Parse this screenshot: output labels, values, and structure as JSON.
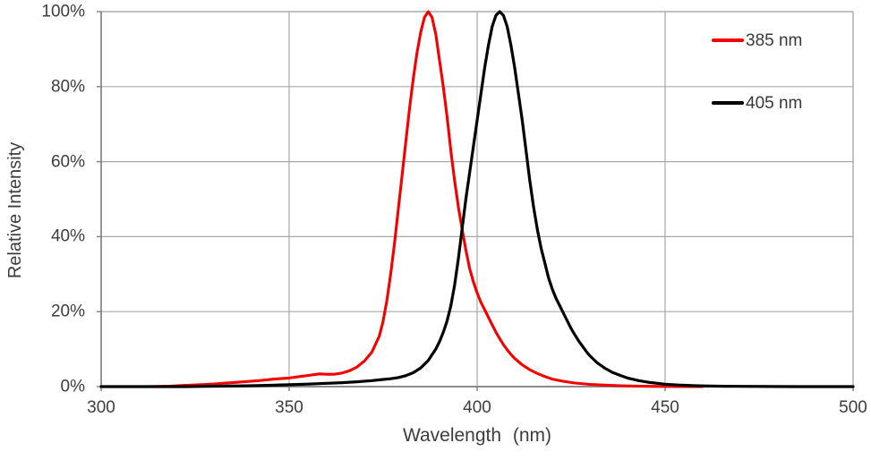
{
  "figure": {
    "y_axis": {
      "title": "Relative Intensity",
      "ticks": [
        "100%",
        "80%",
        "60%",
        "40%",
        "20%",
        "0%"
      ]
    },
    "x_axis": {
      "title": "Wavelength (nm)",
      "ticks": [
        "300",
        "350",
        "400",
        "450",
        "500"
      ]
    },
    "legend": {
      "items": [
        {
          "label": "385 nm",
          "color": "#f40000"
        },
        {
          "label": "405 nm",
          "color": "#000000"
        }
      ]
    },
    "colors": {
      "grid": "#a8a8a8",
      "axis": "#7f7f7f",
      "text": "#3d3d3d",
      "background": "#ffffff"
    }
  },
  "chart_data": {
    "type": "line",
    "title": "",
    "xlabel": "Wavelength (nm)",
    "ylabel": "Relative Intensity",
    "xlim": [
      300,
      500
    ],
    "ylim": [
      0,
      100
    ],
    "x_ticks": [
      300,
      350,
      400,
      450,
      500
    ],
    "y_ticks": [
      0,
      20,
      40,
      60,
      80,
      100
    ],
    "y_tick_format": "percent",
    "grid": true,
    "legend_position": "top-right",
    "series": [
      {
        "name": "385 nm",
        "color": "#f40000",
        "stroke_width": 3.1,
        "peak_nm": 387,
        "points": [
          [
            300,
            0
          ],
          [
            312,
            0
          ],
          [
            318,
            0.1
          ],
          [
            322,
            0.3
          ],
          [
            326,
            0.5
          ],
          [
            330,
            0.7
          ],
          [
            334,
            1.0
          ],
          [
            338,
            1.3
          ],
          [
            342,
            1.6
          ],
          [
            346,
            2.0
          ],
          [
            350,
            2.3
          ],
          [
            353,
            2.7
          ],
          [
            356,
            3.1
          ],
          [
            358,
            3.4
          ],
          [
            360,
            3.3
          ],
          [
            362,
            3.3
          ],
          [
            364,
            3.6
          ],
          [
            366,
            4.2
          ],
          [
            368,
            5.2
          ],
          [
            370,
            6.8
          ],
          [
            372,
            9.2
          ],
          [
            374,
            13.5
          ],
          [
            375,
            17.5
          ],
          [
            376,
            23
          ],
          [
            377,
            30
          ],
          [
            378,
            38
          ],
          [
            379,
            47
          ],
          [
            380,
            56
          ],
          [
            381,
            65
          ],
          [
            382,
            74
          ],
          [
            383,
            82
          ],
          [
            384,
            89
          ],
          [
            385,
            94.5
          ],
          [
            386,
            98.5
          ],
          [
            387,
            100
          ],
          [
            388,
            98.5
          ],
          [
            389,
            94
          ],
          [
            390,
            87
          ],
          [
            391,
            80
          ],
          [
            392,
            72
          ],
          [
            393,
            63
          ],
          [
            394,
            55
          ],
          [
            395,
            48
          ],
          [
            396,
            42
          ],
          [
            397,
            36.5
          ],
          [
            398,
            31.5
          ],
          [
            399,
            28
          ],
          [
            400,
            25
          ],
          [
            401,
            22.5
          ],
          [
            402,
            20.5
          ],
          [
            403,
            18.5
          ],
          [
            404,
            16.5
          ],
          [
            405,
            14.5
          ],
          [
            406,
            12.8
          ],
          [
            407,
            11.2
          ],
          [
            408,
            9.8
          ],
          [
            409,
            8.6
          ],
          [
            410,
            7.5
          ],
          [
            412,
            5.8
          ],
          [
            414,
            4.5
          ],
          [
            416,
            3.5
          ],
          [
            418,
            2.7
          ],
          [
            420,
            2.0
          ],
          [
            423,
            1.4
          ],
          [
            426,
            0.95
          ],
          [
            430,
            0.6
          ],
          [
            434,
            0.4
          ],
          [
            438,
            0.25
          ],
          [
            442,
            0.15
          ],
          [
            446,
            0.08
          ],
          [
            450,
            0.05
          ],
          [
            455,
            0.02
          ],
          [
            460,
            0
          ]
        ]
      },
      {
        "name": "405 nm",
        "color": "#000000",
        "stroke_width": 3.2,
        "peak_nm": 406,
        "points": [
          [
            300,
            0
          ],
          [
            322,
            0
          ],
          [
            328,
            0.08
          ],
          [
            334,
            0.15
          ],
          [
            340,
            0.25
          ],
          [
            345,
            0.35
          ],
          [
            350,
            0.5
          ],
          [
            355,
            0.68
          ],
          [
            360,
            0.88
          ],
          [
            364,
            1.05
          ],
          [
            368,
            1.3
          ],
          [
            372,
            1.6
          ],
          [
            375,
            1.9
          ],
          [
            377,
            2.1
          ],
          [
            379,
            2.4
          ],
          [
            381,
            2.9
          ],
          [
            383,
            3.7
          ],
          [
            385,
            5.0
          ],
          [
            387,
            7.0
          ],
          [
            389,
            10.0
          ],
          [
            390,
            12.0
          ],
          [
            391,
            14.5
          ],
          [
            392,
            17.5
          ],
          [
            393,
            21.5
          ],
          [
            394,
            27
          ],
          [
            395,
            34
          ],
          [
            396,
            42
          ],
          [
            397,
            50
          ],
          [
            398,
            57
          ],
          [
            399,
            64
          ],
          [
            400,
            71
          ],
          [
            401,
            78
          ],
          [
            402,
            85
          ],
          [
            403,
            91
          ],
          [
            404,
            96
          ],
          [
            405,
            99
          ],
          [
            406,
            100
          ],
          [
            407,
            99
          ],
          [
            408,
            96
          ],
          [
            409,
            91
          ],
          [
            410,
            85
          ],
          [
            411,
            78
          ],
          [
            412,
            71
          ],
          [
            413,
            63
          ],
          [
            414,
            55
          ],
          [
            415,
            48
          ],
          [
            416,
            42
          ],
          [
            417,
            37
          ],
          [
            418,
            33
          ],
          [
            419,
            29
          ],
          [
            420,
            26
          ],
          [
            421,
            23.5
          ],
          [
            422,
            21.5
          ],
          [
            423,
            19.5
          ],
          [
            424,
            17.5
          ],
          [
            425,
            15.5
          ],
          [
            426,
            13.8
          ],
          [
            427,
            12.2
          ],
          [
            428,
            10.8
          ],
          [
            429,
            9.4
          ],
          [
            430,
            8.2
          ],
          [
            432,
            6.3
          ],
          [
            434,
            4.9
          ],
          [
            436,
            3.8
          ],
          [
            438,
            3.0
          ],
          [
            440,
            2.3
          ],
          [
            443,
            1.6
          ],
          [
            446,
            1.1
          ],
          [
            450,
            0.65
          ],
          [
            454,
            0.4
          ],
          [
            458,
            0.25
          ],
          [
            462,
            0.15
          ],
          [
            466,
            0.1
          ],
          [
            470,
            0.06
          ],
          [
            478,
            0.03
          ],
          [
            488,
            0.01
          ],
          [
            500,
            0
          ]
        ]
      }
    ]
  }
}
